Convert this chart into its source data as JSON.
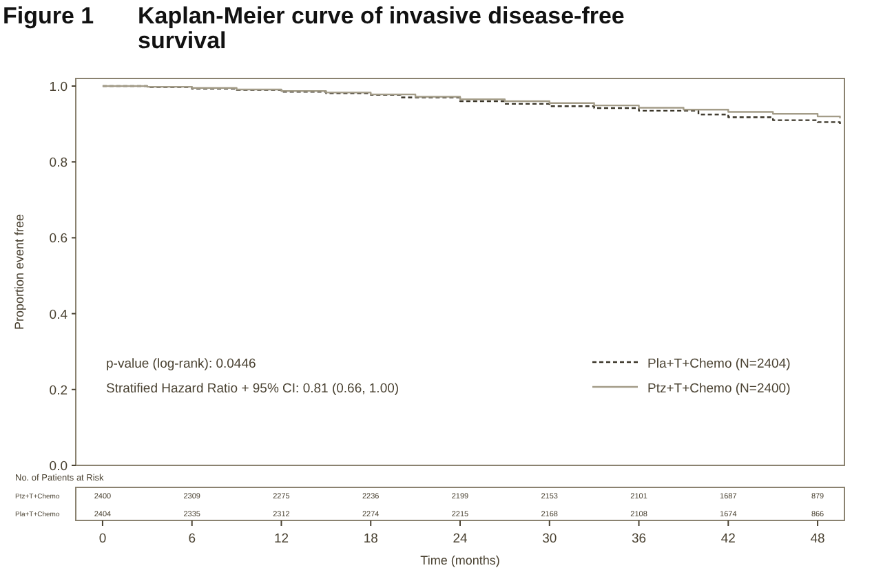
{
  "chart_data": {
    "type": "step",
    "title": "Figure 1 Kaplan-Meier curve of invasive disease-free survival",
    "xlabel": "Time (months)",
    "ylabel": "Proportion event free",
    "xlim": [
      -1.8,
      49.8
    ],
    "ylim": [
      0,
      1.02
    ],
    "xticks": [
      0,
      6,
      12,
      18,
      24,
      30,
      36,
      42,
      48
    ],
    "yticks": [
      {
        "value": 0,
        "label": "0.0"
      },
      0.2,
      0.4,
      0.6,
      0.8,
      {
        "value": 1,
        "label": "1.0"
      }
    ],
    "grid": false,
    "legend": "bottom right",
    "series": [
      {
        "name": "Pla+T+Chemo (N=2404)",
        "color": "#3a3528",
        "line_style": "dashed",
        "x": [
          0,
          3,
          6,
          9,
          12,
          15,
          18,
          20,
          24,
          27,
          30,
          33,
          36,
          40,
          42,
          45,
          48,
          49.5
        ],
        "values": [
          1.0,
          0.997,
          0.993,
          0.99,
          0.985,
          0.981,
          0.977,
          0.97,
          0.96,
          0.953,
          0.947,
          0.942,
          0.935,
          0.925,
          0.918,
          0.91,
          0.905,
          0.9
        ]
      },
      {
        "name": "Ptz+T+Chemo (N=2400)",
        "color": "#a39c88",
        "line_style": "solid",
        "x": [
          0,
          3,
          6,
          9,
          12,
          15,
          18,
          21,
          24,
          27,
          30,
          33,
          36,
          39,
          42,
          45,
          48,
          49.5
        ],
        "values": [
          1.0,
          0.998,
          0.995,
          0.991,
          0.987,
          0.983,
          0.978,
          0.972,
          0.965,
          0.96,
          0.955,
          0.949,
          0.943,
          0.938,
          0.932,
          0.927,
          0.92,
          0.915
        ]
      }
    ],
    "annotations": [
      "p-value (log-rank): 0.0446",
      "Stratified Hazard Ratio + 95% CI: 0.81 (0.66, 1.00)",
      "No. of Patients at Risk",
      "Ptz+T+Chemo",
      "2400",
      "2309",
      "2275",
      "2236",
      "2199",
      "2153",
      "2101",
      "1687",
      "879",
      "Pla+T+Chemo",
      "2404",
      "2335",
      "2312",
      "2274",
      "2215",
      "2168",
      "2108",
      "1674",
      "866"
    ]
  }
}
